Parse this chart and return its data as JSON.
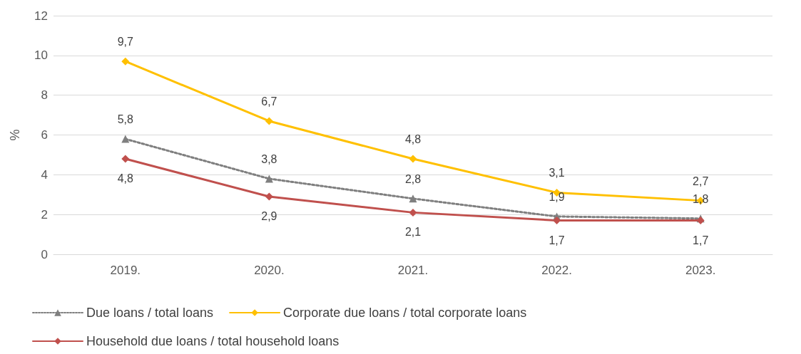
{
  "chart_data": {
    "type": "line",
    "ylabel": "%",
    "categories": [
      "2019.",
      "2020.",
      "2021.",
      "2022.",
      "2023."
    ],
    "ylim": [
      0,
      12
    ],
    "yticks": [
      0,
      2,
      4,
      6,
      8,
      10,
      12
    ],
    "grid": "y",
    "legend": "bottom",
    "series": [
      {
        "name": "Due loans / total loans",
        "color": "#7f7f7f",
        "marker": "triangle",
        "line_style": "dotted",
        "values": [
          5.8,
          3.8,
          2.8,
          1.9,
          1.8
        ],
        "value_labels": [
          "5,8",
          "3,8",
          "2,8",
          "1,9",
          "1,8"
        ]
      },
      {
        "name": "Corporate due loans / total corporate loans",
        "color": "#ffc000",
        "marker": "diamond",
        "line_style": "solid",
        "values": [
          9.7,
          6.7,
          4.8,
          3.1,
          2.7
        ],
        "value_labels": [
          "9,7",
          "6,7",
          "4,8",
          "3,1",
          "2,7"
        ]
      },
      {
        "name": "Household due loans / total household loans",
        "color": "#c0504d",
        "marker": "diamond",
        "line_style": "solid",
        "values": [
          4.8,
          2.9,
          2.1,
          1.7,
          1.7
        ],
        "value_labels": [
          "4,8",
          "2,9",
          "2,1",
          "1,7",
          "1,7"
        ]
      }
    ]
  }
}
